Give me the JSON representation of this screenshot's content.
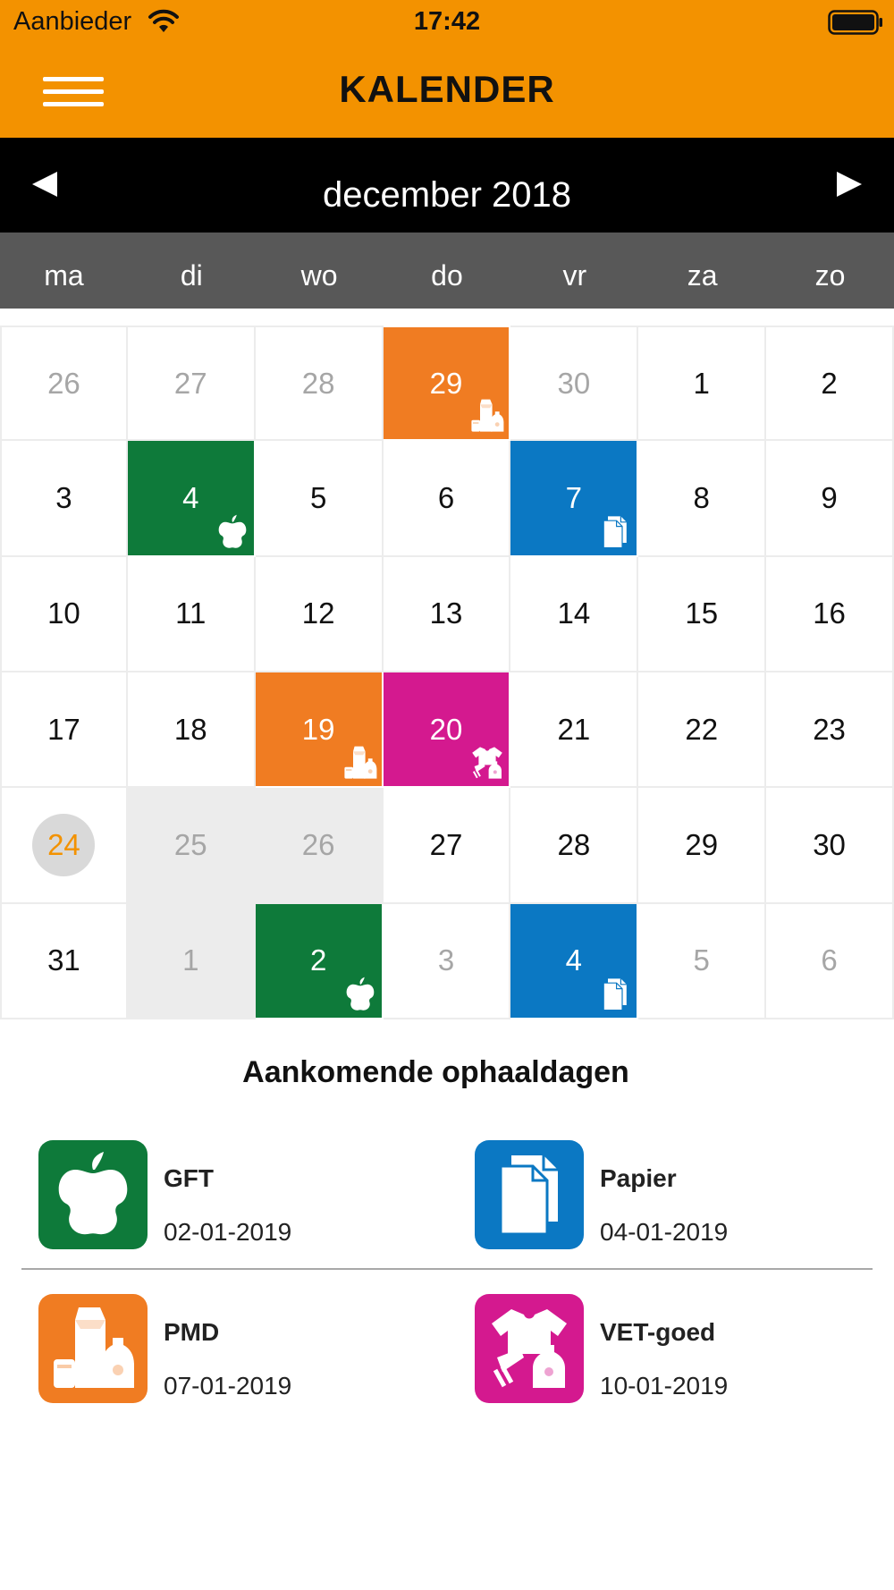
{
  "statusbar": {
    "carrier": "Aanbieder",
    "time": "17:42"
  },
  "header": {
    "title": "KALENDER",
    "menu_icon": "hamburger-menu-icon"
  },
  "month": {
    "label": "december 2018",
    "prev_icon": "triangle-left-icon",
    "next_icon": "triangle-right-icon"
  },
  "weekdays": [
    "ma",
    "di",
    "wo",
    "do",
    "vr",
    "za",
    "zo"
  ],
  "colors": {
    "brand": "#f39200",
    "gft": "#0e7a3a",
    "papier": "#0b78c3",
    "pmd": "#f07c22",
    "vet": "#d4198f"
  },
  "calendar": {
    "days": [
      {
        "label": "26",
        "state": "muted"
      },
      {
        "label": "27",
        "state": "muted"
      },
      {
        "label": "28",
        "state": "muted"
      },
      {
        "label": "29",
        "state": "pickup",
        "type": "pmd"
      },
      {
        "label": "30",
        "state": "muted"
      },
      {
        "label": "1",
        "state": "normal"
      },
      {
        "label": "2",
        "state": "normal"
      },
      {
        "label": "3",
        "state": "normal"
      },
      {
        "label": "4",
        "state": "pickup",
        "type": "gft"
      },
      {
        "label": "5",
        "state": "normal"
      },
      {
        "label": "6",
        "state": "normal"
      },
      {
        "label": "7",
        "state": "pickup",
        "type": "papier"
      },
      {
        "label": "8",
        "state": "normal"
      },
      {
        "label": "9",
        "state": "normal"
      },
      {
        "label": "10",
        "state": "normal"
      },
      {
        "label": "11",
        "state": "normal"
      },
      {
        "label": "12",
        "state": "normal"
      },
      {
        "label": "13",
        "state": "normal"
      },
      {
        "label": "14",
        "state": "normal"
      },
      {
        "label": "15",
        "state": "normal"
      },
      {
        "label": "16",
        "state": "normal"
      },
      {
        "label": "17",
        "state": "normal"
      },
      {
        "label": "18",
        "state": "normal"
      },
      {
        "label": "19",
        "state": "pickup",
        "type": "pmd"
      },
      {
        "label": "20",
        "state": "pickup",
        "type": "vet"
      },
      {
        "label": "21",
        "state": "normal"
      },
      {
        "label": "22",
        "state": "normal"
      },
      {
        "label": "23",
        "state": "normal"
      },
      {
        "label": "24",
        "state": "today"
      },
      {
        "label": "25",
        "state": "greyed"
      },
      {
        "label": "26",
        "state": "greyed"
      },
      {
        "label": "27",
        "state": "normal"
      },
      {
        "label": "28",
        "state": "normal"
      },
      {
        "label": "29",
        "state": "normal"
      },
      {
        "label": "30",
        "state": "normal"
      },
      {
        "label": "31",
        "state": "normal"
      },
      {
        "label": "1",
        "state": "greyed"
      },
      {
        "label": "2",
        "state": "pickup",
        "type": "gft"
      },
      {
        "label": "3",
        "state": "muted"
      },
      {
        "label": "4",
        "state": "pickup",
        "type": "papier"
      },
      {
        "label": "5",
        "state": "muted"
      },
      {
        "label": "6",
        "state": "muted"
      }
    ]
  },
  "upcoming": {
    "title": "Aankomende ophaaldagen",
    "items": [
      {
        "name": "GFT",
        "date": "02-01-2019",
        "type": "gft",
        "icon": "apple-core-icon"
      },
      {
        "name": "Papier",
        "date": "04-01-2019",
        "type": "papier",
        "icon": "paper-icon"
      },
      {
        "name": "PMD",
        "date": "07-01-2019",
        "type": "pmd",
        "icon": "packaging-icon"
      },
      {
        "name": "VET-goed",
        "date": "10-01-2019",
        "type": "vet",
        "icon": "textile-icon"
      }
    ]
  }
}
